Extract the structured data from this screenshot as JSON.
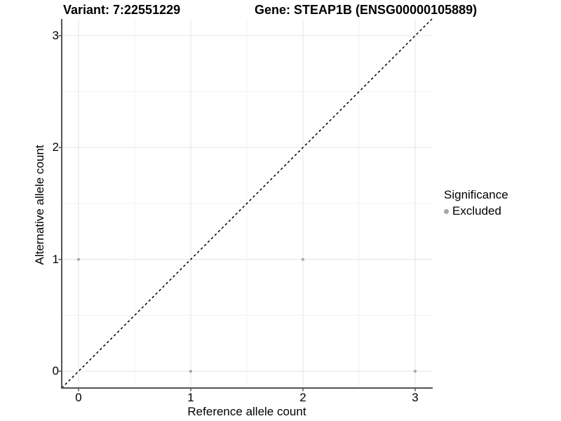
{
  "page": {
    "background": "#ffffff"
  },
  "title": {
    "left": "Variant: 7:22551229",
    "right": "Gene: STEAP1B (ENSG00000105889)"
  },
  "axes": {
    "x": {
      "label": "Reference allele count"
    },
    "y": {
      "label": "Alternative allele count"
    }
  },
  "legend": {
    "title": "Significance",
    "items": [
      {
        "label": "Excluded",
        "color": "#a8a8a8"
      }
    ]
  },
  "chart_data": {
    "type": "scatter",
    "title": "Variant: 7:22551229    Gene: STEAP1B (ENSG00000105889)",
    "xlabel": "Reference allele count",
    "ylabel": "Alternative allele count",
    "xlim": [
      -0.15,
      3.15
    ],
    "ylim": [
      -0.15,
      3.15
    ],
    "x_ticks": [
      0,
      1,
      2,
      3
    ],
    "y_ticks": [
      0,
      1,
      2,
      3
    ],
    "grid": "major+minor",
    "legend_position": "right",
    "series": [
      {
        "name": "Excluded",
        "color": "#a8a8a8",
        "points": [
          [
            0,
            1
          ],
          [
            1,
            0
          ],
          [
            2,
            1
          ],
          [
            3,
            0
          ]
        ]
      }
    ],
    "reference_line": {
      "type": "identity",
      "style": "dashed",
      "color": "#000000"
    }
  },
  "style": {
    "grid_major_color": "#e4e4e4",
    "grid_minor_color": "#f0f0f0",
    "axis_line_color": "#545454",
    "tick_color": "#545454",
    "text_color": "#000000"
  }
}
